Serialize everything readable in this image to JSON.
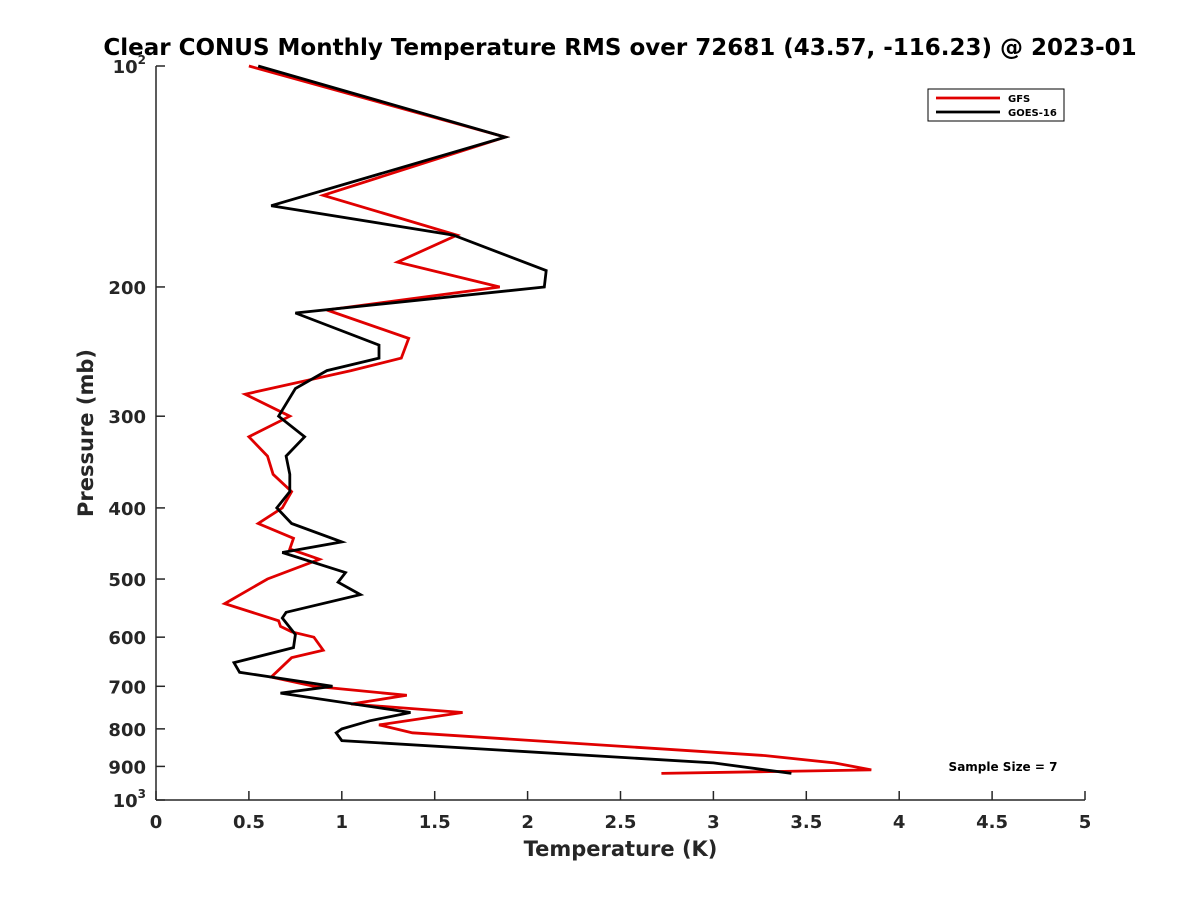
{
  "chart_data": {
    "type": "line",
    "title": "Clear CONUS Monthly Temperature RMS over 72681 (43.57, -116.23) @ 2023-01",
    "xlabel": "Temperature (K)",
    "ylabel": "Pressure (mb)",
    "xlim": [
      0,
      5
    ],
    "ylim": [
      100,
      1000
    ],
    "y_scale": "log",
    "y_direction": "reversed",
    "x_ticks": [
      0,
      0.5,
      1,
      1.5,
      2,
      2.5,
      3,
      3.5,
      4,
      4.5,
      5
    ],
    "x_tick_labels": [
      "0",
      "0.5",
      "1",
      "1.5",
      "2",
      "2.5",
      "3",
      "3.5",
      "4",
      "4.5",
      "5"
    ],
    "y_ticks": [
      {
        "value": 100,
        "base": "10",
        "exp": "2"
      },
      {
        "value": 200,
        "label": "200"
      },
      {
        "value": 300,
        "label": "300"
      },
      {
        "value": 400,
        "label": "400"
      },
      {
        "value": 500,
        "label": "500"
      },
      {
        "value": 600,
        "label": "600"
      },
      {
        "value": 700,
        "label": "700"
      },
      {
        "value": 800,
        "label": "800"
      },
      {
        "value": 900,
        "label": "900"
      },
      {
        "value": 1000,
        "base": "10",
        "exp": "3"
      }
    ],
    "legend": {
      "position": "top-right",
      "entries": [
        "GFS",
        "GOES-16"
      ]
    },
    "annotation": "Sample Size = 7",
    "series": [
      {
        "name": "GFS",
        "color": "#e00000",
        "points": [
          [
            0.5,
            100
          ],
          [
            1.88,
            125
          ],
          [
            0.9,
            150
          ],
          [
            1.62,
            170
          ],
          [
            1.3,
            185
          ],
          [
            1.85,
            200
          ],
          [
            0.92,
            215
          ],
          [
            1.36,
            235
          ],
          [
            1.32,
            250
          ],
          [
            1.05,
            260
          ],
          [
            0.48,
            280
          ],
          [
            0.72,
            300
          ],
          [
            0.5,
            320
          ],
          [
            0.6,
            340
          ],
          [
            0.63,
            360
          ],
          [
            0.73,
            380
          ],
          [
            0.68,
            400
          ],
          [
            0.55,
            420
          ],
          [
            0.74,
            440
          ],
          [
            0.72,
            455
          ],
          [
            0.88,
            470
          ],
          [
            0.6,
            500
          ],
          [
            0.37,
            540
          ],
          [
            0.66,
            570
          ],
          [
            0.67,
            580
          ],
          [
            0.73,
            590
          ],
          [
            0.85,
            600
          ],
          [
            0.9,
            625
          ],
          [
            0.73,
            640
          ],
          [
            0.62,
            680
          ],
          [
            0.85,
            700
          ],
          [
            1.35,
            720
          ],
          [
            1.05,
            740
          ],
          [
            1.65,
            760
          ],
          [
            1.2,
            790
          ],
          [
            1.38,
            810
          ],
          [
            3.28,
            870
          ],
          [
            3.65,
            890
          ],
          [
            3.85,
            910
          ],
          [
            2.72,
            920
          ]
        ]
      },
      {
        "name": "GOES-16",
        "color": "#000000",
        "points": [
          [
            0.55,
            100
          ],
          [
            1.88,
            125
          ],
          [
            0.62,
            155
          ],
          [
            1.6,
            170
          ],
          [
            2.1,
            190
          ],
          [
            2.09,
            200
          ],
          [
            0.75,
            217
          ],
          [
            1.2,
            240
          ],
          [
            1.2,
            250
          ],
          [
            0.92,
            260
          ],
          [
            0.75,
            275
          ],
          [
            0.66,
            300
          ],
          [
            0.8,
            320
          ],
          [
            0.7,
            340
          ],
          [
            0.72,
            360
          ],
          [
            0.72,
            380
          ],
          [
            0.65,
            400
          ],
          [
            0.73,
            420
          ],
          [
            1.0,
            445
          ],
          [
            0.68,
            460
          ],
          [
            1.02,
            490
          ],
          [
            0.98,
            505
          ],
          [
            1.1,
            525
          ],
          [
            0.7,
            555
          ],
          [
            0.68,
            565
          ],
          [
            0.75,
            595
          ],
          [
            0.74,
            620
          ],
          [
            0.42,
            650
          ],
          [
            0.45,
            670
          ],
          [
            0.95,
            700
          ],
          [
            0.67,
            715
          ],
          [
            1.37,
            760
          ],
          [
            1.15,
            780
          ],
          [
            1.0,
            800
          ],
          [
            0.97,
            810
          ],
          [
            1.0,
            830
          ],
          [
            3.0,
            890
          ],
          [
            3.42,
            920
          ]
        ]
      }
    ]
  }
}
